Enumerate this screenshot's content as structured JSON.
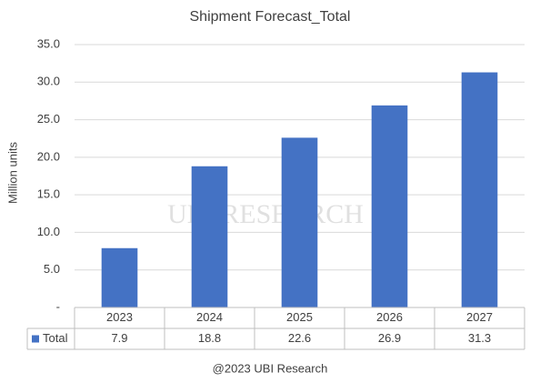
{
  "chart_data": {
    "type": "bar",
    "title": "Shipment Forecast_Total",
    "y_label": "Million units",
    "categories": [
      "2023",
      "2024",
      "2025",
      "2026",
      "2027"
    ],
    "series": [
      {
        "name": "Total",
        "color": "#4472c4",
        "values": [
          7.9,
          18.8,
          22.6,
          26.9,
          31.3
        ]
      }
    ],
    "ylim": [
      0,
      35
    ],
    "yticks": [
      {
        "value": 0,
        "label": "-"
      },
      {
        "value": 5,
        "label": "5.0"
      },
      {
        "value": 10,
        "label": "10.0"
      },
      {
        "value": 15,
        "label": "15.0"
      },
      {
        "value": 20,
        "label": "20.0"
      },
      {
        "value": 25,
        "label": "25.0"
      },
      {
        "value": 30,
        "label": "30.0"
      },
      {
        "value": 35,
        "label": "35.0"
      }
    ],
    "grid": true,
    "data_table": true,
    "watermark": "UBI RESEARCH",
    "source": "@2023 UBI Research"
  }
}
